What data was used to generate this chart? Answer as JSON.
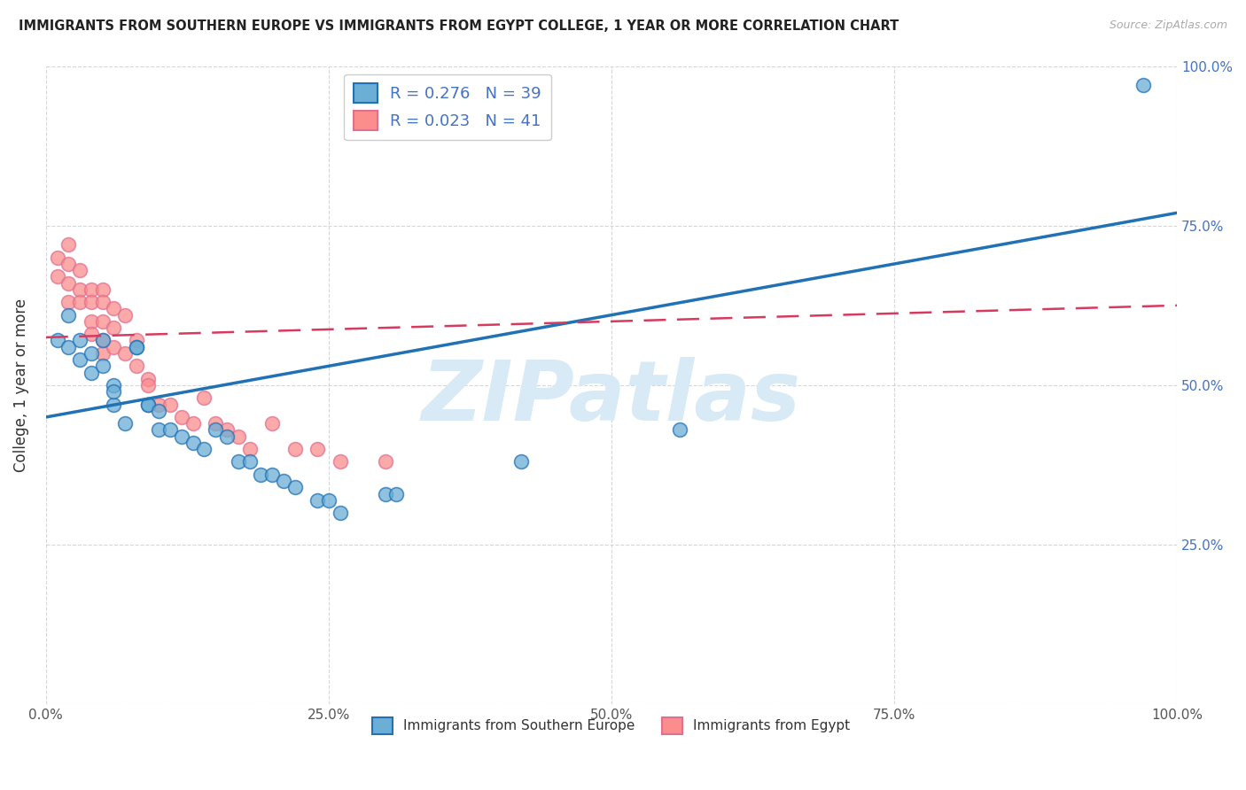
{
  "title": "IMMIGRANTS FROM SOUTHERN EUROPE VS IMMIGRANTS FROM EGYPT COLLEGE, 1 YEAR OR MORE CORRELATION CHART",
  "source": "Source: ZipAtlas.com",
  "ylabel": "College, 1 year or more",
  "xlim": [
    0,
    1.0
  ],
  "ylim": [
    0,
    1.0
  ],
  "xticks": [
    0.0,
    0.25,
    0.5,
    0.75,
    1.0
  ],
  "xtick_labels": [
    "0.0%",
    "25.0%",
    "50.0%",
    "75.0%",
    "100.0%"
  ],
  "ytick_labels": [
    "",
    "25.0%",
    "50.0%",
    "75.0%",
    "100.0%"
  ],
  "yticks": [
    0.0,
    0.25,
    0.5,
    0.75,
    1.0
  ],
  "blue_color": "#6baed6",
  "pink_color": "#fc8d8d",
  "blue_line_color": "#2171b5",
  "pink_line_color": "#d63b5f",
  "R_blue": 0.276,
  "N_blue": 39,
  "R_pink": 0.023,
  "N_pink": 41,
  "legend_label_blue": "Immigrants from Southern Europe",
  "legend_label_pink": "Immigrants from Egypt",
  "blue_line_x0": 0.0,
  "blue_line_y0": 0.45,
  "blue_line_x1": 1.0,
  "blue_line_y1": 0.77,
  "pink_line_x0": 0.0,
  "pink_line_y0": 0.575,
  "pink_line_x1": 1.0,
  "pink_line_y1": 0.625,
  "blue_scatter_x": [
    0.01,
    0.02,
    0.02,
    0.03,
    0.03,
    0.04,
    0.04,
    0.05,
    0.05,
    0.06,
    0.06,
    0.06,
    0.07,
    0.08,
    0.08,
    0.09,
    0.09,
    0.1,
    0.1,
    0.11,
    0.12,
    0.13,
    0.14,
    0.15,
    0.16,
    0.17,
    0.18,
    0.19,
    0.2,
    0.21,
    0.22,
    0.24,
    0.25,
    0.26,
    0.3,
    0.31,
    0.42,
    0.56,
    0.97
  ],
  "blue_scatter_y": [
    0.57,
    0.61,
    0.56,
    0.57,
    0.54,
    0.55,
    0.52,
    0.57,
    0.53,
    0.5,
    0.47,
    0.49,
    0.44,
    0.56,
    0.56,
    0.47,
    0.47,
    0.43,
    0.46,
    0.43,
    0.42,
    0.41,
    0.4,
    0.43,
    0.42,
    0.38,
    0.38,
    0.36,
    0.36,
    0.35,
    0.34,
    0.32,
    0.32,
    0.3,
    0.33,
    0.33,
    0.38,
    0.43,
    0.97
  ],
  "pink_scatter_x": [
    0.01,
    0.01,
    0.02,
    0.02,
    0.02,
    0.02,
    0.03,
    0.03,
    0.03,
    0.04,
    0.04,
    0.04,
    0.04,
    0.05,
    0.05,
    0.05,
    0.05,
    0.05,
    0.06,
    0.06,
    0.06,
    0.07,
    0.07,
    0.08,
    0.08,
    0.09,
    0.09,
    0.1,
    0.11,
    0.12,
    0.13,
    0.14,
    0.15,
    0.16,
    0.17,
    0.18,
    0.2,
    0.22,
    0.24,
    0.26,
    0.3
  ],
  "pink_scatter_y": [
    0.67,
    0.7,
    0.69,
    0.72,
    0.66,
    0.63,
    0.68,
    0.65,
    0.63,
    0.65,
    0.63,
    0.6,
    0.58,
    0.65,
    0.63,
    0.6,
    0.57,
    0.55,
    0.62,
    0.59,
    0.56,
    0.61,
    0.55,
    0.57,
    0.53,
    0.51,
    0.5,
    0.47,
    0.47,
    0.45,
    0.44,
    0.48,
    0.44,
    0.43,
    0.42,
    0.4,
    0.44,
    0.4,
    0.4,
    0.38,
    0.38
  ]
}
